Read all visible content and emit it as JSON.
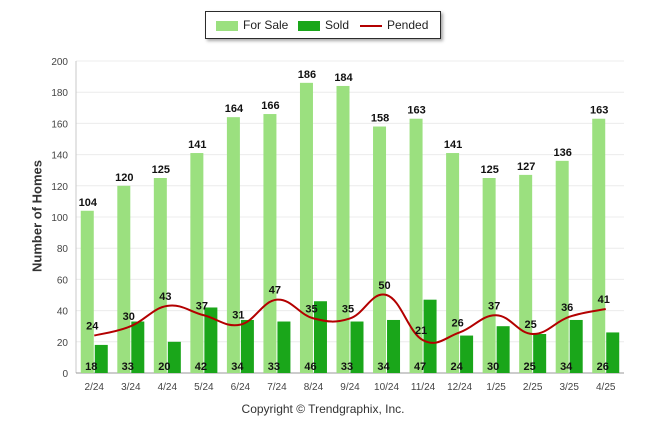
{
  "chart_data": {
    "type": "bar",
    "categories": [
      "2/24",
      "3/24",
      "4/24",
      "5/24",
      "6/24",
      "7/24",
      "8/24",
      "9/24",
      "10/24",
      "11/24",
      "12/24",
      "1/25",
      "2/25",
      "3/25",
      "4/25"
    ],
    "series": [
      {
        "name": "For Sale",
        "type": "bar",
        "color": "#9be07f",
        "values": [
          104,
          120,
          125,
          141,
          164,
          166,
          186,
          184,
          158,
          163,
          141,
          125,
          127,
          136,
          163
        ]
      },
      {
        "name": "Sold",
        "type": "bar",
        "color": "#1aa61a",
        "values": [
          18,
          33,
          20,
          42,
          34,
          33,
          46,
          33,
          34,
          47,
          24,
          30,
          25,
          34,
          26
        ]
      },
      {
        "name": "Pended",
        "type": "line",
        "color": "#b30000",
        "values": [
          24,
          30,
          43,
          37,
          31,
          47,
          35,
          35,
          50,
          21,
          26,
          37,
          25,
          36,
          41
        ]
      }
    ],
    "ylabel": "Number of Homes",
    "xlabel": "",
    "ylim": [
      0,
      200
    ],
    "yticks": [
      0,
      20,
      40,
      60,
      80,
      100,
      120,
      140,
      160,
      180,
      200
    ],
    "grid": true,
    "legend_position": "top-center"
  },
  "legend": {
    "for_sale": "For Sale",
    "sold": "Sold",
    "pended": "Pended"
  },
  "footer": {
    "copyright": "Copyright © Trendgraphix, Inc."
  }
}
